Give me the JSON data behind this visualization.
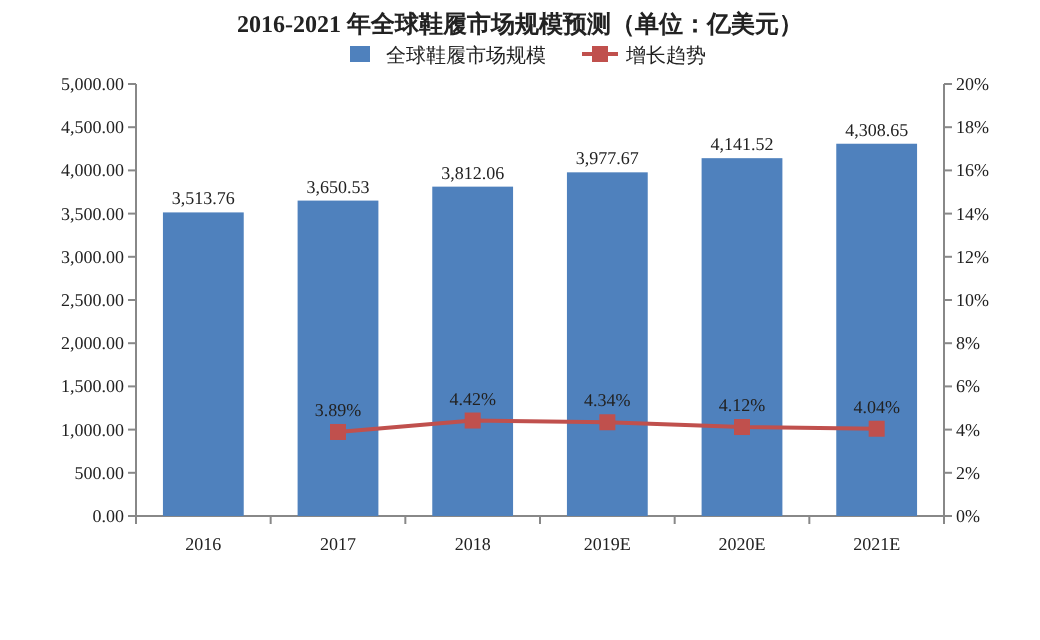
{
  "chart_data": {
    "type": "bar",
    "title": "2016-2021 年全球鞋履市场规模预测（单位：亿美元）",
    "categories": [
      "2016",
      "2017",
      "2018",
      "2019E",
      "2020E",
      "2021E"
    ],
    "series": [
      {
        "name": "全球鞋履市场规模",
        "color": "#4f81bd",
        "values": [
          3513.76,
          3650.53,
          3812.06,
          3977.67,
          4141.52,
          4308.65
        ],
        "value_labels": [
          "3,513.76",
          "3,650.53",
          "3,812.06",
          "3,977.67",
          "4,141.52",
          "4,308.65"
        ]
      },
      {
        "name": "增长趋势",
        "type": "line",
        "axis": "y2",
        "color": "#c0504d",
        "marker": "square",
        "values": [
          null,
          3.89,
          4.42,
          4.34,
          4.12,
          4.04
        ],
        "value_labels": [
          null,
          "3.89%",
          "4.42%",
          "4.34%",
          "4.12%",
          "4.04%"
        ]
      }
    ],
    "ylim": [
      0,
      5000
    ],
    "yticks": [
      {
        "value": 0,
        "label": "0.00"
      },
      {
        "value": 500,
        "label": "500.00"
      },
      {
        "value": 1000,
        "label": "1,000.00"
      },
      {
        "value": 1500,
        "label": "1,500.00"
      },
      {
        "value": 2000,
        "label": "2,000.00"
      },
      {
        "value": 2500,
        "label": "2,500.00"
      },
      {
        "value": 3000,
        "label": "3,000.00"
      },
      {
        "value": 3500,
        "label": "3,500.00"
      },
      {
        "value": 4000,
        "label": "4,000.00"
      },
      {
        "value": 4500,
        "label": "4,500.00"
      },
      {
        "value": 5000,
        "label": "5,000.00"
      }
    ],
    "y2lim": [
      0,
      20
    ],
    "y2ticks": [
      {
        "value": 0,
        "label": "0%"
      },
      {
        "value": 2,
        "label": "2%"
      },
      {
        "value": 4,
        "label": "4%"
      },
      {
        "value": 6,
        "label": "6%"
      },
      {
        "value": 8,
        "label": "8%"
      },
      {
        "value": 10,
        "label": "10%"
      },
      {
        "value": 12,
        "label": "12%"
      },
      {
        "value": 14,
        "label": "14%"
      },
      {
        "value": 16,
        "label": "16%"
      },
      {
        "value": 18,
        "label": "18%"
      },
      {
        "value": 20,
        "label": "20%"
      }
    ],
    "legend": "top"
  }
}
